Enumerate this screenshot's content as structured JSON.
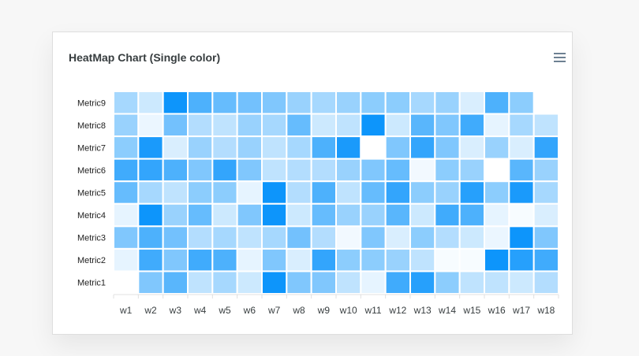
{
  "card": {
    "title": "HeatMap Chart (Single color)",
    "menu_icon": "hamburger-menu-icon"
  },
  "chart_data": {
    "type": "heatmap",
    "title": "HeatMap Chart (Single color)",
    "base_color": "#008FFB",
    "x_categories": [
      "w1",
      "w2",
      "w3",
      "w4",
      "w5",
      "w6",
      "w7",
      "w8",
      "w9",
      "w10",
      "w11",
      "w12",
      "w13",
      "w14",
      "w15",
      "w16",
      "w17",
      "w18"
    ],
    "series": [
      {
        "name": "Metric9",
        "values": [
          35,
          20,
          95,
          70,
          60,
          55,
          50,
          40,
          35,
          40,
          45,
          45,
          35,
          40,
          15,
          70,
          45,
          null
        ]
      },
      {
        "name": "Metric8",
        "values": [
          40,
          8,
          55,
          30,
          25,
          40,
          35,
          60,
          20,
          25,
          95,
          20,
          65,
          50,
          75,
          10,
          35,
          25
        ]
      },
      {
        "name": "Metric7",
        "values": [
          45,
          90,
          15,
          40,
          30,
          40,
          25,
          35,
          70,
          90,
          0,
          50,
          80,
          50,
          15,
          40,
          15,
          80
        ]
      },
      {
        "name": "Metric6",
        "values": [
          75,
          80,
          70,
          50,
          80,
          50,
          25,
          30,
          30,
          40,
          50,
          60,
          5,
          45,
          40,
          0,
          65,
          40
        ]
      },
      {
        "name": "Metric5",
        "values": [
          60,
          35,
          25,
          45,
          45,
          10,
          95,
          30,
          70,
          25,
          60,
          80,
          45,
          40,
          85,
          45,
          90,
          35
        ]
      },
      {
        "name": "Metric4",
        "values": [
          10,
          95,
          40,
          60,
          20,
          50,
          95,
          20,
          60,
          40,
          40,
          65,
          20,
          75,
          70,
          10,
          3,
          15
        ]
      },
      {
        "name": "Metric3",
        "values": [
          50,
          70,
          55,
          30,
          35,
          25,
          35,
          55,
          30,
          5,
          50,
          15,
          45,
          30,
          20,
          8,
          95,
          50
        ]
      },
      {
        "name": "Metric2",
        "values": [
          10,
          75,
          50,
          75,
          70,
          10,
          50,
          15,
          80,
          45,
          45,
          40,
          25,
          3,
          3,
          95,
          85,
          75
        ]
      },
      {
        "name": "Metric1",
        "values": [
          0,
          50,
          65,
          25,
          35,
          20,
          95,
          50,
          50,
          25,
          10,
          75,
          85,
          45,
          25,
          25,
          20,
          30
        ]
      }
    ],
    "legend": "none",
    "grid": false
  }
}
